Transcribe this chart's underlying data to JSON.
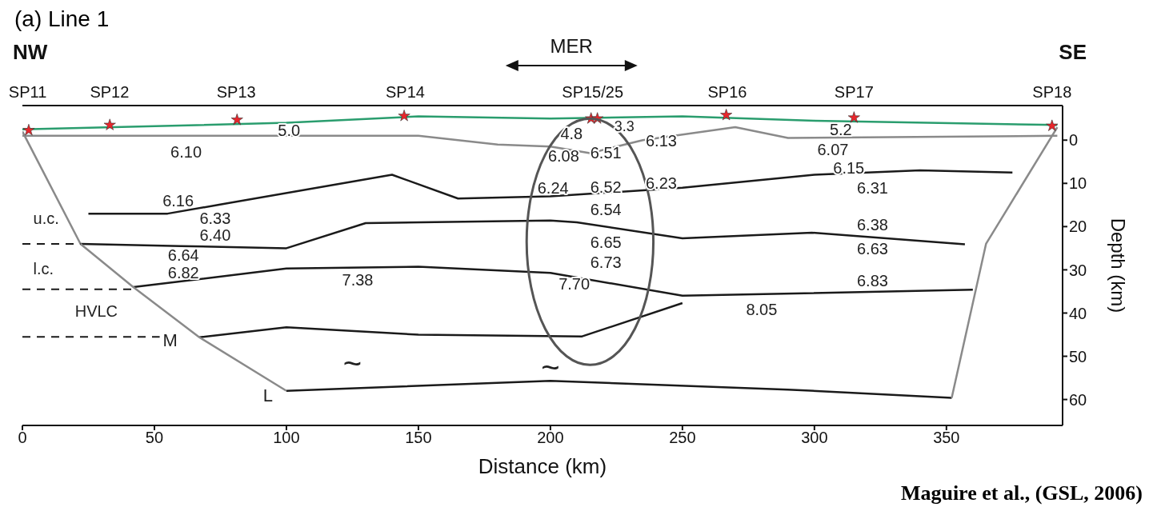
{
  "chart_data": {
    "type": "line",
    "title": "(a) Line 1",
    "xlabel": "Distance (km)",
    "ylabel": "Depth (km)",
    "xlim": [
      0,
      394
    ],
    "xticks": [
      0,
      50,
      100,
      150,
      200,
      250,
      300,
      350
    ],
    "ylim": [
      66,
      -8
    ],
    "yticks": [
      0,
      10,
      20,
      30,
      40,
      50,
      60
    ],
    "marker": "none",
    "series": [
      {
        "color": "#2a9d6e",
        "x": [
          0,
          100,
          150,
          200,
          250,
          300,
          392
        ],
        "values": [
          -2.5,
          -4,
          -5.5,
          -5,
          -5.5,
          -4.5,
          -3.5
        ]
      },
      {
        "color": "#8a8a8a",
        "x": [
          0,
          150,
          180,
          200,
          215,
          235,
          270,
          290,
          392
        ],
        "values": [
          -1,
          -1,
          1,
          1.5,
          3,
          0,
          -3,
          -0.5,
          -1
        ]
      },
      {
        "color": "#1a1a1a",
        "x": [
          25,
          55,
          140,
          165,
          200,
          250,
          300,
          340,
          375
        ],
        "values": [
          17,
          17,
          8,
          13.5,
          13,
          11,
          8,
          7,
          7.5
        ]
      },
      {
        "color": "#1a1a1a",
        "x": [
          22,
          60,
          100,
          130,
          200,
          210,
          250,
          299,
          357
        ],
        "values": [
          24,
          24.5,
          25,
          19.2,
          18.6,
          19,
          22.7,
          21.4,
          24.1
        ]
      },
      {
        "color": "#1a1a1a",
        "x": [
          42,
          100,
          150,
          200,
          250,
          360
        ],
        "values": [
          34,
          29.7,
          29.3,
          30.7,
          36,
          34.6
        ]
      },
      {
        "color": "#1a1a1a",
        "x": [
          67,
          100,
          150,
          212,
          250
        ],
        "values": [
          45.6,
          43.3,
          45,
          45.4,
          37.7
        ]
      },
      {
        "color": "#1a1a1a",
        "x": [
          100,
          200,
          290,
          352
        ],
        "values": [
          58,
          55.7,
          57.7,
          59.6
        ]
      },
      {
        "color": "#8a8a8a",
        "x": [
          0,
          22,
          42,
          67,
          100
        ],
        "values": [
          -2,
          24,
          34,
          45.6,
          58
        ]
      },
      {
        "color": "#8a8a8a",
        "x": [
          392,
          365,
          352
        ],
        "values": [
          -3,
          24,
          59.6
        ]
      },
      {
        "color": "#1a1a1a",
        "line_style": "dashed",
        "x": [
          0,
          22
        ],
        "values": [
          24,
          24
        ]
      },
      {
        "color": "#1a1a1a",
        "line_style": "dashed",
        "x": [
          0,
          42
        ],
        "values": [
          34.5,
          34.5
        ]
      },
      {
        "color": "#1a1a1a",
        "line_style": "dashed",
        "x": [
          0,
          52
        ],
        "values": [
          45.5,
          45.5
        ]
      },
      {
        "type": "scatter",
        "marker": "star",
        "color": "#e8262b",
        "x": [
          2.4,
          33.1,
          81.3,
          144.6,
          215.4,
          217.8,
          266.6,
          315,
          390
        ],
        "values": [
          -2.3,
          -3.5,
          -4.7,
          -5.6,
          -5,
          -5,
          -5.8,
          -5.2,
          -3.3
        ]
      }
    ],
    "annotations": [
      "NW",
      "MER",
      "SE",
      "Maguire et al., (GSL, 2006)",
      "5.0",
      "6.10",
      "4.8",
      "3.3",
      "6.08",
      "6.51",
      "6.13",
      "5.2",
      "6.07",
      "6.15",
      "6.31",
      "6.16",
      "6.33",
      "6.24",
      "6.52",
      "6.23",
      "6.54",
      "6.40",
      "6.64",
      "6.65",
      "6.38",
      "6.63",
      "6.82",
      "7.38",
      "6.73",
      "7.70",
      "6.83",
      "8.05",
      "~",
      "~",
      "u.c.",
      "l.c.",
      "HVLC",
      "M",
      "L",
      "SP11",
      "SP12",
      "SP13",
      "SP14",
      "SP15/25",
      "SP16",
      "SP17",
      "SP18"
    ]
  }
}
